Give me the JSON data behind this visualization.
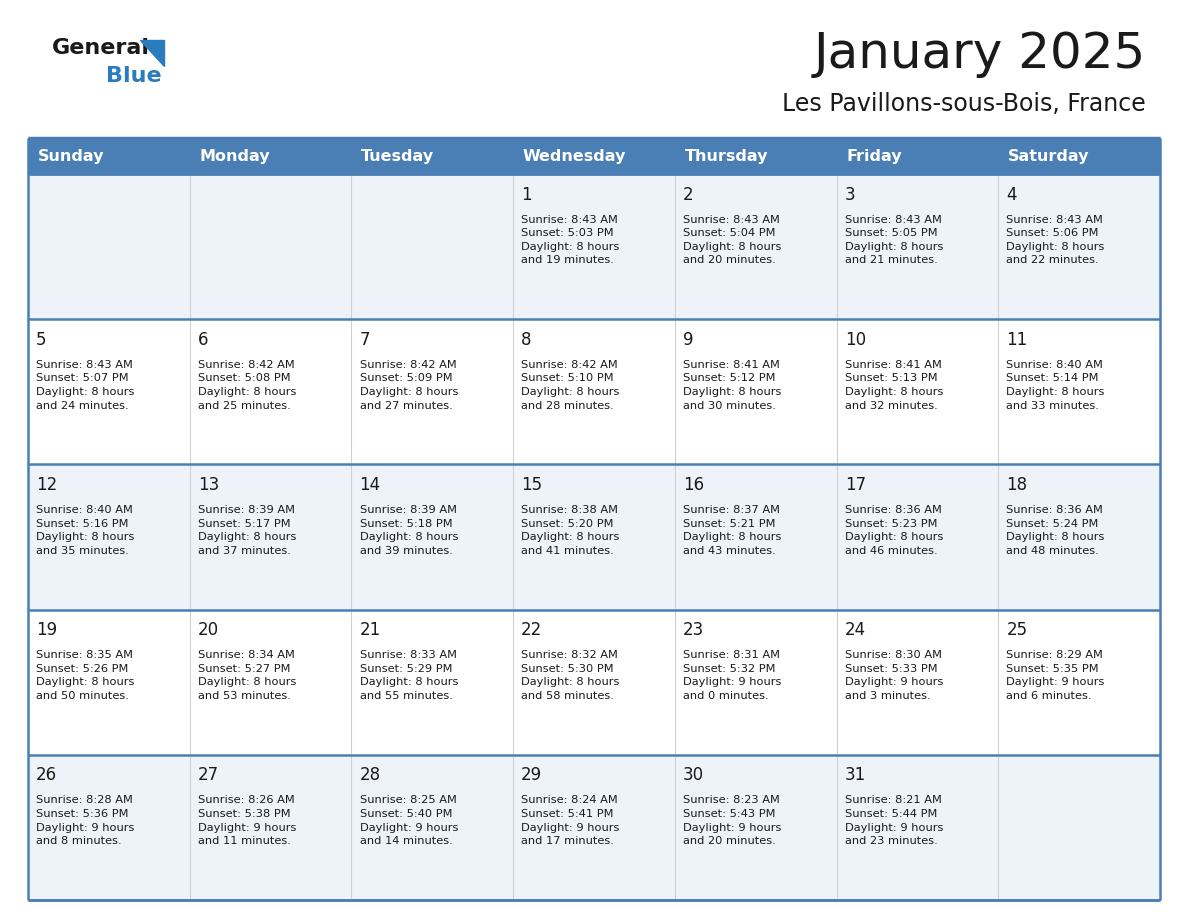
{
  "title": "January 2025",
  "subtitle": "Les Pavillons-sous-Bois, France",
  "header_bg": "#4a7fb5",
  "header_text": "#ffffff",
  "row_bg_odd": "#eef3f9",
  "row_bg_even": "#ffffff",
  "grid_line_color": "#4a7fb5",
  "cell_divider_color": "#d0d0d0",
  "day_headers": [
    "Sunday",
    "Monday",
    "Tuesday",
    "Wednesday",
    "Thursday",
    "Friday",
    "Saturday"
  ],
  "calendar_data": [
    [
      "",
      "",
      "",
      "1\nSunrise: 8:43 AM\nSunset: 5:03 PM\nDaylight: 8 hours\nand 19 minutes.",
      "2\nSunrise: 8:43 AM\nSunset: 5:04 PM\nDaylight: 8 hours\nand 20 minutes.",
      "3\nSunrise: 8:43 AM\nSunset: 5:05 PM\nDaylight: 8 hours\nand 21 minutes.",
      "4\nSunrise: 8:43 AM\nSunset: 5:06 PM\nDaylight: 8 hours\nand 22 minutes."
    ],
    [
      "5\nSunrise: 8:43 AM\nSunset: 5:07 PM\nDaylight: 8 hours\nand 24 minutes.",
      "6\nSunrise: 8:42 AM\nSunset: 5:08 PM\nDaylight: 8 hours\nand 25 minutes.",
      "7\nSunrise: 8:42 AM\nSunset: 5:09 PM\nDaylight: 8 hours\nand 27 minutes.",
      "8\nSunrise: 8:42 AM\nSunset: 5:10 PM\nDaylight: 8 hours\nand 28 minutes.",
      "9\nSunrise: 8:41 AM\nSunset: 5:12 PM\nDaylight: 8 hours\nand 30 minutes.",
      "10\nSunrise: 8:41 AM\nSunset: 5:13 PM\nDaylight: 8 hours\nand 32 minutes.",
      "11\nSunrise: 8:40 AM\nSunset: 5:14 PM\nDaylight: 8 hours\nand 33 minutes."
    ],
    [
      "12\nSunrise: 8:40 AM\nSunset: 5:16 PM\nDaylight: 8 hours\nand 35 minutes.",
      "13\nSunrise: 8:39 AM\nSunset: 5:17 PM\nDaylight: 8 hours\nand 37 minutes.",
      "14\nSunrise: 8:39 AM\nSunset: 5:18 PM\nDaylight: 8 hours\nand 39 minutes.",
      "15\nSunrise: 8:38 AM\nSunset: 5:20 PM\nDaylight: 8 hours\nand 41 minutes.",
      "16\nSunrise: 8:37 AM\nSunset: 5:21 PM\nDaylight: 8 hours\nand 43 minutes.",
      "17\nSunrise: 8:36 AM\nSunset: 5:23 PM\nDaylight: 8 hours\nand 46 minutes.",
      "18\nSunrise: 8:36 AM\nSunset: 5:24 PM\nDaylight: 8 hours\nand 48 minutes."
    ],
    [
      "19\nSunrise: 8:35 AM\nSunset: 5:26 PM\nDaylight: 8 hours\nand 50 minutes.",
      "20\nSunrise: 8:34 AM\nSunset: 5:27 PM\nDaylight: 8 hours\nand 53 minutes.",
      "21\nSunrise: 8:33 AM\nSunset: 5:29 PM\nDaylight: 8 hours\nand 55 minutes.",
      "22\nSunrise: 8:32 AM\nSunset: 5:30 PM\nDaylight: 8 hours\nand 58 minutes.",
      "23\nSunrise: 8:31 AM\nSunset: 5:32 PM\nDaylight: 9 hours\nand 0 minutes.",
      "24\nSunrise: 8:30 AM\nSunset: 5:33 PM\nDaylight: 9 hours\nand 3 minutes.",
      "25\nSunrise: 8:29 AM\nSunset: 5:35 PM\nDaylight: 9 hours\nand 6 minutes."
    ],
    [
      "26\nSunrise: 8:28 AM\nSunset: 5:36 PM\nDaylight: 9 hours\nand 8 minutes.",
      "27\nSunrise: 8:26 AM\nSunset: 5:38 PM\nDaylight: 9 hours\nand 11 minutes.",
      "28\nSunrise: 8:25 AM\nSunset: 5:40 PM\nDaylight: 9 hours\nand 14 minutes.",
      "29\nSunrise: 8:24 AM\nSunset: 5:41 PM\nDaylight: 9 hours\nand 17 minutes.",
      "30\nSunrise: 8:23 AM\nSunset: 5:43 PM\nDaylight: 9 hours\nand 20 minutes.",
      "31\nSunrise: 8:21 AM\nSunset: 5:44 PM\nDaylight: 9 hours\nand 23 minutes.",
      ""
    ]
  ],
  "logo_color_general": "#1a1a1a",
  "logo_color_blue": "#2b7bbf",
  "logo_triangle_color": "#2b7bbf",
  "title_color": "#1a1a1a",
  "subtitle_color": "#1a1a1a",
  "title_fontsize": 36,
  "subtitle_fontsize": 17,
  "header_fontsize": 11.5,
  "cell_day_fontsize": 12,
  "cell_info_fontsize": 8.2
}
